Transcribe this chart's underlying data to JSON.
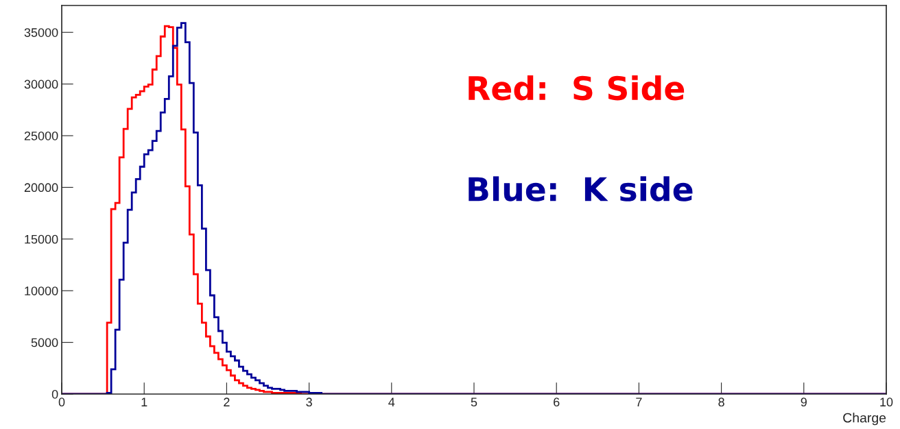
{
  "chart_data": {
    "type": "histogram",
    "xlabel": "Charge",
    "bins": [
      0,
      0.55,
      0.6,
      0.65,
      0.7,
      0.75,
      0.8,
      0.85,
      0.9,
      0.95,
      1.0,
      1.05,
      1.1,
      1.15,
      1.2,
      1.25,
      1.3,
      1.35,
      1.4,
      1.45,
      1.5,
      1.55,
      1.6,
      1.65,
      1.7,
      1.75,
      1.8,
      1.85,
      1.9,
      1.95,
      2.0,
      2.05,
      2.1,
      2.15,
      2.2,
      2.25,
      2.3,
      2.35,
      2.4,
      2.45,
      2.5,
      2.55,
      2.6,
      2.65,
      2.7,
      2.75,
      2.8,
      2.85,
      2.9,
      2.95,
      3.0,
      3.05,
      3.1,
      3.15,
      10
    ],
    "series": [
      {
        "name": "Red:  S Side",
        "color": "#ff0000",
        "values": [
          0,
          6900,
          17900,
          18500,
          22900,
          25650,
          27600,
          28700,
          28950,
          29300,
          29750,
          29950,
          31400,
          32700,
          34600,
          35600,
          35500,
          33500,
          29950,
          25600,
          20100,
          15450,
          11600,
          8750,
          6900,
          5570,
          4640,
          3980,
          3380,
          2780,
          2320,
          1790,
          1330,
          1060,
          800,
          600,
          500,
          400,
          300,
          200,
          200,
          100,
          100,
          100,
          100,
          100,
          100,
          100,
          0,
          0,
          0,
          0,
          0,
          0
        ]
      },
      {
        "name": "Blue:  K side",
        "color": "#000099",
        "values": [
          0,
          100,
          2390,
          6230,
          11070,
          14650,
          17830,
          19500,
          20800,
          22000,
          23200,
          23600,
          24500,
          25450,
          27250,
          28550,
          30750,
          33700,
          35450,
          35900,
          34050,
          30100,
          25300,
          20200,
          16000,
          12000,
          9550,
          7430,
          6100,
          4970,
          4110,
          3650,
          3250,
          2650,
          2250,
          1920,
          1590,
          1330,
          1060,
          800,
          600,
          500,
          500,
          400,
          300,
          300,
          300,
          200,
          200,
          200,
          100,
          100,
          100,
          0
        ]
      }
    ],
    "xlim": [
      0,
      10
    ],
    "xticks": [
      0,
      1,
      2,
      3,
      4,
      5,
      6,
      7,
      8,
      9,
      10
    ],
    "ylim": [
      0,
      37600
    ],
    "yticks": [
      0,
      5000,
      10000,
      15000,
      20000,
      25000,
      30000,
      35000
    ],
    "legend": "top right",
    "grid": false
  }
}
